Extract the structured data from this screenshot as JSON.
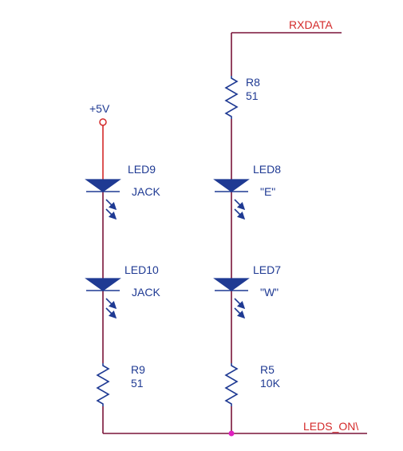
{
  "power": {
    "label": "+5V"
  },
  "nets": {
    "rxdata": "RXDATA",
    "leds_on": "LEDS_ON\\"
  },
  "left_branch": {
    "led_top": {
      "ref": "LED9",
      "value": "JACK"
    },
    "led_bottom": {
      "ref": "LED10",
      "value": "JACK"
    },
    "resistor": {
      "ref": "R9",
      "value": "51"
    }
  },
  "right_branch": {
    "resistor_top": {
      "ref": "R8",
      "value": "51"
    },
    "led_top": {
      "ref": "LED8",
      "value": "\"E\""
    },
    "led_bottom": {
      "ref": "LED7",
      "value": "\"W\""
    },
    "resistor_bottom": {
      "ref": "R5",
      "value": "10K"
    }
  },
  "colors": {
    "wire": "#7a1438",
    "component": "#1f3a93",
    "net_label": "#d42a2a",
    "junction": "#e020c0"
  }
}
